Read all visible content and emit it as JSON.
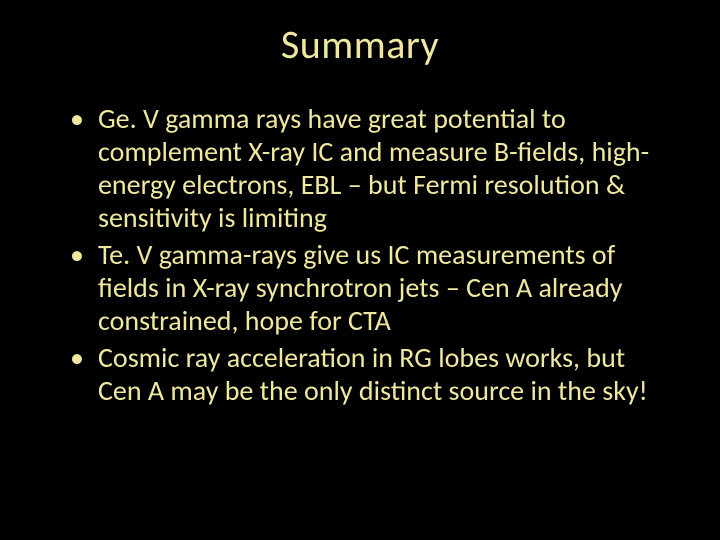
{
  "slide": {
    "background_color": "#000000",
    "text_color": "#f0e89e",
    "title": "Summary",
    "title_fontsize": 40,
    "body_fontsize": 28,
    "font_family": "Calibri",
    "bullets": [
      "Ge. V gamma rays have great potential to complement X-ray IC and measure B-fields, high-energy electrons, EBL – but Fermi resolution & sensitivity is limiting",
      "Te. V gamma-rays give us IC measurements of fields in X-ray synchrotron jets – Cen A already constrained, hope for CTA",
      "Cosmic ray acceleration in RG lobes works, but Cen A may be the only distinct source in the sky!"
    ]
  }
}
